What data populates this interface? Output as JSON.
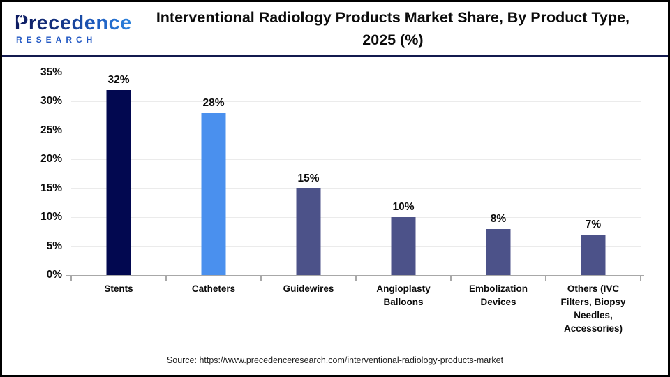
{
  "header": {
    "logo": {
      "name": "Precedence",
      "subtitle": "RESEARCH",
      "subtitle_color": "#2359C4"
    },
    "divider_color": "#131A4F"
  },
  "chart_data": {
    "type": "bar",
    "title": "Interventional Radiology Products Market Share, By Product Type, 2025 (%)",
    "categories": [
      "Stents",
      "Catheters",
      "Guidewires",
      "Angioplasty Balloons",
      "Embolization Devices",
      "Others (IVC Filters, Biopsy Needles, Accessories)"
    ],
    "values": [
      32,
      28,
      15,
      10,
      8,
      7
    ],
    "value_labels": [
      "32%",
      "28%",
      "15%",
      "10%",
      "8%",
      "7%"
    ],
    "bar_colors": [
      "#020850",
      "#4A90EE",
      "#4C5289",
      "#4C5289",
      "#4C5289",
      "#4C5289"
    ],
    "xlabel": "",
    "ylabel": "",
    "ylim": [
      0,
      35
    ],
    "yticks": [
      0,
      5,
      10,
      15,
      20,
      25,
      30,
      35
    ],
    "ytick_labels": [
      "0%",
      "5%",
      "10%",
      "15%",
      "20%",
      "25%",
      "30%",
      "35%"
    ],
    "grid": true,
    "grid_color": "#EBEBEB",
    "axis_color": "#A8A8A8",
    "legend": "none"
  },
  "footer": {
    "source": "Source: https://www.precedenceresearch.com/interventional-radiology-products-market"
  }
}
